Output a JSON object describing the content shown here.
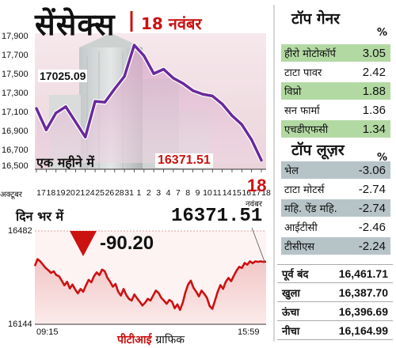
{
  "header": {
    "title": "सेंसेक्स",
    "date": "18 नवंबर"
  },
  "gainers": {
    "title": "टॉप गेनर",
    "unit": "%",
    "items": [
      {
        "name": "हीरो मोटोकॉर्प",
        "value": "3.05"
      },
      {
        "name": "टाटा पावर",
        "value": "2.42"
      },
      {
        "name": "विप्रो",
        "value": "1.88"
      },
      {
        "name": "सन फार्मा",
        "value": "1.36"
      },
      {
        "name": "एचडीएफसी",
        "value": "1.34"
      }
    ]
  },
  "losers": {
    "title": "टॉप लूज़र",
    "unit": "%",
    "items": [
      {
        "name": "भेल",
        "value": "-3.06"
      },
      {
        "name": "टाटा मोटर्स",
        "value": "-2.74"
      },
      {
        "name": "महि. ऐंड महि.",
        "value": "-2.74"
      },
      {
        "name": "आईटीसी",
        "value": "-2.46"
      },
      {
        "name": "टीसीएस",
        "value": "-2.24"
      }
    ]
  },
  "stats": [
    {
      "label": "पूर्व बंद",
      "value": "16,461.71"
    },
    {
      "label": "खुला",
      "value": "16,387.70"
    },
    {
      "label": "ऊंचा",
      "value": "16,396.69"
    },
    {
      "label": "नीचा",
      "value": "16,164.99"
    }
  ],
  "footer": {
    "credit": "पीटीआई",
    "suffix": "ग्राफिक"
  },
  "colors": {
    "month_line": "#6a2a9a",
    "day_line": "#cc1111",
    "accent_red": "#cc1111",
    "gainer_shade": "#b3d9a3",
    "loser_shade": "#b7c4c7"
  },
  "chart_data": [
    {
      "type": "line",
      "caption": "एक महीने में",
      "month_label": "अक्टूबर",
      "day_label": "18",
      "day_sublabel": "नवंबर",
      "x": [
        "17",
        "18",
        "19",
        "20",
        "21",
        "24",
        "25",
        "26",
        "28",
        "31",
        "1",
        "2",
        "3",
        "4",
        "7",
        "8",
        "9",
        "10",
        "11",
        "14",
        "15",
        "16",
        "17",
        "18"
      ],
      "values": [
        17110,
        16870,
        17060,
        17130,
        16960,
        16790,
        17190,
        17180,
        17330,
        17470,
        17820,
        17700,
        17500,
        17550,
        17450,
        17390,
        17310,
        17270,
        17250,
        17160,
        17030,
        16930,
        16760,
        16530
      ],
      "annotations": [
        {
          "label": "17025.09"
        },
        {
          "label": "16371.51"
        }
      ],
      "y_ticks": [
        "17,900",
        "17,700",
        "17,500",
        "17,300",
        "17,100",
        "16,900",
        "16,700",
        "16,500"
      ],
      "ylim": [
        16500,
        17900
      ],
      "grid": false
    },
    {
      "type": "line",
      "caption": "दिन भर में",
      "change": "-90.20",
      "close_label": "16371.51",
      "y_ticks": [
        "16482",
        "16144"
      ],
      "ylim": [
        16144,
        16482
      ],
      "x_ticks": [
        "09:15",
        "15:59"
      ],
      "values": [
        16355,
        16380,
        16372,
        16360,
        16348,
        16340,
        16330,
        16336,
        16322,
        16318,
        16302,
        16285,
        16298,
        16274,
        16288,
        16270,
        16256,
        16272,
        16262,
        16285,
        16305,
        16296,
        16318,
        16332,
        16322,
        16342,
        16336,
        16312,
        16298,
        16280,
        16290,
        16262,
        16248,
        16272,
        16250,
        16236,
        16230,
        16252,
        16238,
        16226,
        16212,
        16222,
        16236,
        16230,
        16248,
        16266,
        16258,
        16240,
        16230,
        16218,
        16232,
        16226,
        16202,
        16216,
        16196,
        16222,
        16260,
        16288,
        16302,
        16276,
        16262,
        16245,
        16266,
        16254,
        16240,
        16210,
        16200,
        16230,
        16262,
        16286,
        16272,
        16298,
        16312,
        16300,
        16320,
        16338,
        16352,
        16348,
        16366,
        16360,
        16372,
        16365,
        16372,
        16370,
        16372,
        16370,
        16371
      ],
      "grid": false
    }
  ]
}
